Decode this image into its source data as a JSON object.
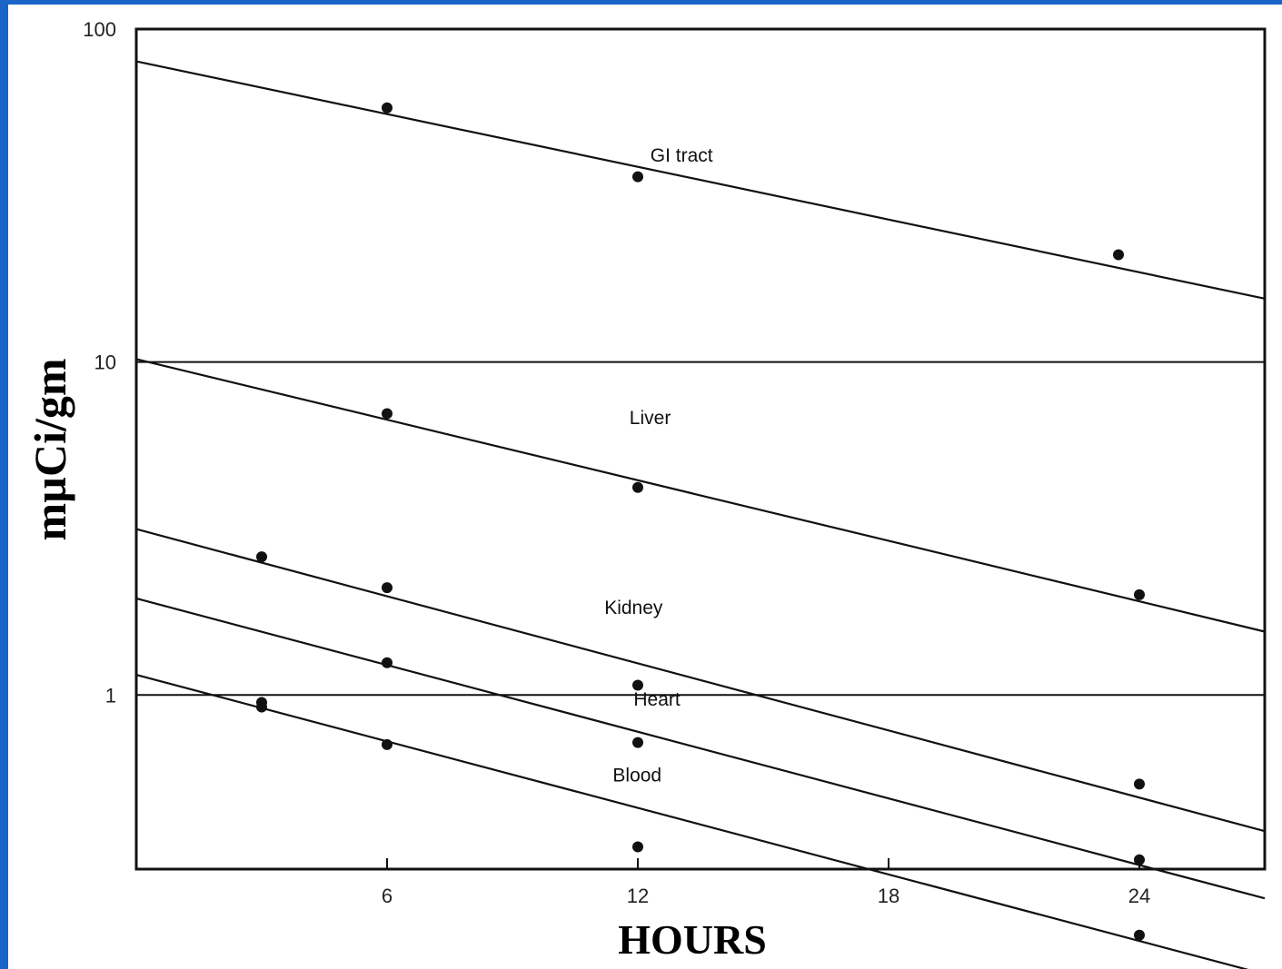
{
  "chart_data": {
    "type": "line",
    "xlabel": "HOURS",
    "ylabel": "mµCi/gm",
    "x_scale": "linear",
    "y_scale": "log",
    "xlim": [
      0,
      27
    ],
    "ylim": [
      0.3,
      100
    ],
    "x_ticks": [
      6,
      12,
      18,
      24
    ],
    "x_tick_labels": [
      "6",
      "12",
      "18",
      "24"
    ],
    "y_ticks": [
      1,
      10,
      100
    ],
    "y_tick_labels": [
      "1",
      "10",
      "100"
    ],
    "gridlines_y": [
      1,
      10
    ],
    "series": [
      {
        "name": "GI tract",
        "label_at": [
          12.3,
          40
        ],
        "line": [
          [
            0,
            80
          ],
          [
            27,
            15.5
          ]
        ],
        "points": [
          [
            6,
            58
          ],
          [
            12,
            36
          ],
          [
            23.5,
            21
          ]
        ]
      },
      {
        "name": "Liver",
        "label_at": [
          11.8,
          6.5
        ],
        "line": [
          [
            0,
            10.2
          ],
          [
            27,
            1.55
          ]
        ],
        "points": [
          [
            6,
            7.0
          ],
          [
            12,
            4.2
          ],
          [
            24,
            2.0
          ]
        ]
      },
      {
        "name": "Kidney",
        "label_at": [
          11.2,
          1.75
        ],
        "line": [
          [
            0,
            3.15
          ],
          [
            27,
            0.39
          ]
        ],
        "points": [
          [
            3,
            2.6
          ],
          [
            6,
            2.1
          ],
          [
            12,
            1.07
          ],
          [
            24,
            0.54
          ]
        ]
      },
      {
        "name": "Heart",
        "label_at": [
          11.9,
          0.93
        ],
        "line": [
          [
            0,
            1.95
          ],
          [
            27,
            0.245
          ]
        ],
        "points": [
          [
            3,
            0.95
          ],
          [
            6,
            1.25
          ],
          [
            12,
            0.72
          ],
          [
            24,
            0.32
          ]
        ]
      },
      {
        "name": "Blood",
        "label_at": [
          11.4,
          0.55
        ],
        "line": [
          [
            0,
            1.15
          ],
          [
            27,
            0.145
          ]
        ],
        "points": [
          [
            3,
            0.92
          ],
          [
            6,
            0.71
          ],
          [
            12,
            0.35
          ],
          [
            24,
            0.19
          ]
        ]
      }
    ]
  }
}
